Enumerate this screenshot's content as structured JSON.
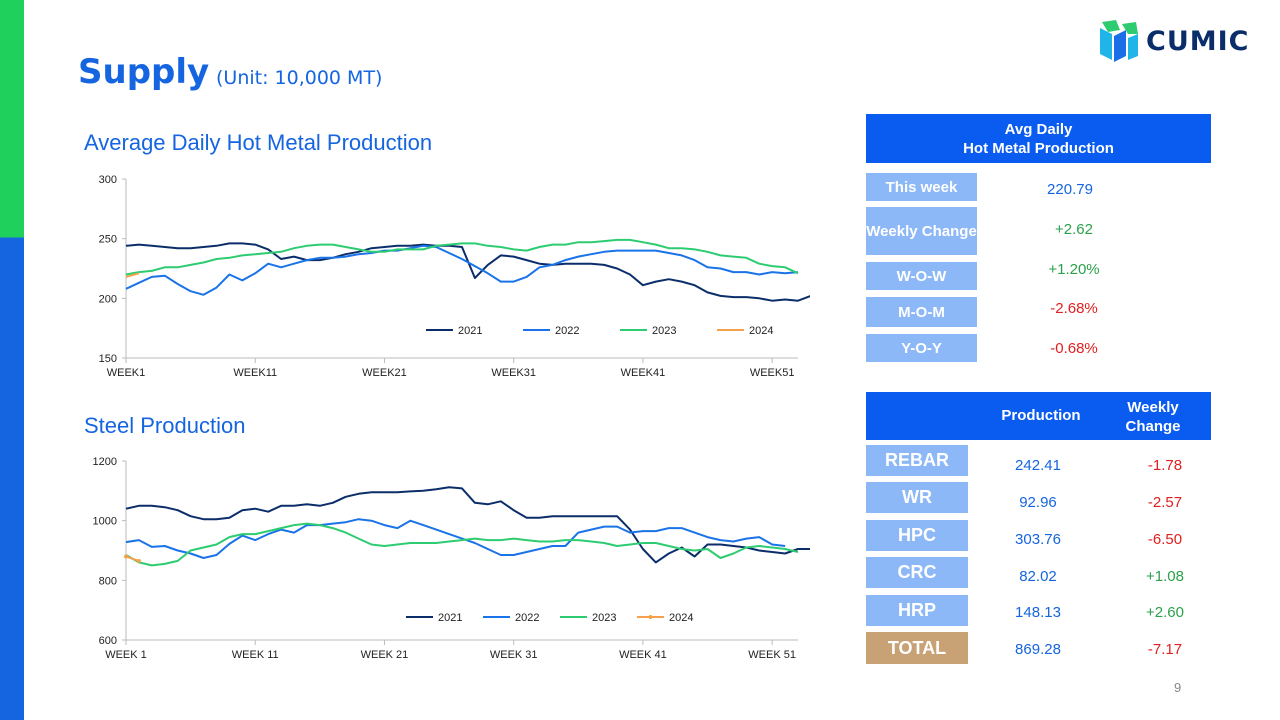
{
  "header": {
    "title": "Supply",
    "unit": "(Unit: 10,000 MT)",
    "logo_text": "CUMIC"
  },
  "colors": {
    "s2021": "#0b2e6b",
    "s2022": "#1a73e8",
    "s2023": "#2ecc71",
    "s2024": "#f5a04a",
    "accent": "#1565e0"
  },
  "chart_data": [
    {
      "type": "line",
      "title": "Average Daily Hot Metal Production",
      "x_ticks": [
        "WEEK1",
        "WEEK11",
        "WEEK21",
        "WEEK31",
        "WEEK41",
        "WEEK51"
      ],
      "x_range": [
        1,
        53
      ],
      "ylim": [
        150,
        300
      ],
      "y_ticks": [
        "150",
        "200",
        "250",
        "300"
      ],
      "legend_position": "bottom-right",
      "series": [
        {
          "name": "2021",
          "values": [
            244,
            245,
            244,
            243,
            242,
            242,
            243,
            244,
            246,
            246,
            245,
            241,
            233,
            235,
            232,
            232,
            234,
            237,
            239,
            242,
            243,
            244,
            244,
            245,
            244,
            244,
            243,
            217,
            228,
            236,
            235,
            232,
            229,
            228,
            229,
            229,
            229,
            228,
            225,
            220,
            211,
            214,
            216,
            214,
            211,
            205,
            202,
            201,
            201,
            200,
            198,
            199,
            198,
            202
          ]
        },
        {
          "name": "2022",
          "values": [
            208,
            213,
            218,
            219,
            212,
            206,
            203,
            209,
            220,
            215,
            221,
            229,
            226,
            229,
            232,
            234,
            234,
            235,
            237,
            238,
            240,
            240,
            242,
            244,
            243,
            238,
            233,
            227,
            221,
            214,
            214,
            218,
            226,
            228,
            232,
            235,
            237,
            239,
            240,
            240,
            240,
            240,
            238,
            236,
            232,
            226,
            225,
            222,
            222,
            220,
            222,
            221,
            222
          ]
        },
        {
          "name": "2023",
          "values": [
            220,
            222,
            223,
            226,
            226,
            228,
            230,
            233,
            234,
            236,
            237,
            238,
            239,
            242,
            244,
            245,
            245,
            243,
            241,
            239,
            239,
            241,
            241,
            241,
            244,
            245,
            246,
            246,
            244,
            243,
            241,
            240,
            243,
            245,
            245,
            247,
            247,
            248,
            249,
            249,
            247,
            245,
            242,
            242,
            241,
            239,
            236,
            235,
            234,
            229,
            227,
            226,
            221
          ]
        },
        {
          "name": "2024",
          "values": [
            218,
            221
          ]
        }
      ]
    },
    {
      "type": "line",
      "title": "Steel Production",
      "x_ticks": [
        "WEEK 1",
        "WEEK 11",
        "WEEK 21",
        "WEEK 31",
        "WEEK 41",
        "WEEK 51"
      ],
      "x_range": [
        1,
        53
      ],
      "ylim": [
        600,
        1200
      ],
      "y_ticks": [
        "600",
        "800",
        "1000",
        "1200"
      ],
      "legend_position": "bottom-right",
      "series": [
        {
          "name": "2021",
          "values": [
            1040,
            1050,
            1050,
            1045,
            1035,
            1015,
            1005,
            1005,
            1010,
            1035,
            1040,
            1030,
            1050,
            1050,
            1055,
            1050,
            1060,
            1080,
            1090,
            1095,
            1095,
            1095,
            1098,
            1100,
            1105,
            1112,
            1108,
            1060,
            1055,
            1065,
            1035,
            1010,
            1010,
            1015,
            1015,
            1015,
            1015,
            1015,
            1015,
            970,
            905,
            860,
            890,
            910,
            880,
            920,
            920,
            915,
            910,
            900,
            895,
            890,
            905,
            905
          ]
        },
        {
          "name": "2022",
          "values": [
            928,
            935,
            912,
            915,
            900,
            890,
            875,
            885,
            922,
            950,
            935,
            955,
            970,
            960,
            985,
            985,
            990,
            995,
            1005,
            1000,
            985,
            975,
            1000,
            985,
            970,
            955,
            940,
            925,
            905,
            885,
            885,
            895,
            905,
            915,
            915,
            960,
            970,
            980,
            980,
            960,
            965,
            965,
            975,
            975,
            960,
            945,
            935,
            930,
            940,
            945,
            920,
            915
          ]
        },
        {
          "name": "2023",
          "values": [
            885,
            860,
            850,
            855,
            865,
            900,
            910,
            920,
            945,
            955,
            955,
            965,
            975,
            985,
            990,
            985,
            975,
            960,
            940,
            920,
            915,
            920,
            925,
            925,
            925,
            930,
            935,
            940,
            935,
            935,
            940,
            935,
            930,
            930,
            935,
            935,
            930,
            925,
            915,
            920,
            925,
            925,
            915,
            905,
            900,
            905,
            875,
            890,
            910,
            915,
            910,
            905,
            895
          ]
        },
        {
          "name": "2024",
          "values": [
            880,
            865
          ]
        }
      ]
    }
  ],
  "hot_metal_table": {
    "header": "Avg Daily\nHot Metal Production",
    "rows": [
      {
        "label": "This week",
        "value": "220.79"
      },
      {
        "label": "Weekly Change",
        "value": "+2.62"
      },
      {
        "label": "W-O-W",
        "value": "+1.20%"
      },
      {
        "label": "M-O-M",
        "value": "-2.68%"
      },
      {
        "label": "Y-O-Y",
        "value": "-0.68%"
      }
    ]
  },
  "steel_table": {
    "col_production": "Production",
    "col_change": "Weekly Change",
    "rows": [
      {
        "label": "REBAR",
        "production": "242.41",
        "change": "-1.78"
      },
      {
        "label": "WR",
        "production": "92.96",
        "change": "-2.57"
      },
      {
        "label": "HPC",
        "production": "303.76",
        "change": "-6.50"
      },
      {
        "label": "CRC",
        "production": "82.02",
        "change": "+1.08"
      },
      {
        "label": "HRP",
        "production": "148.13",
        "change": "+2.60"
      },
      {
        "label": "TOTAL",
        "production": "869.28",
        "change": "-7.17"
      }
    ]
  },
  "page_number": "9"
}
